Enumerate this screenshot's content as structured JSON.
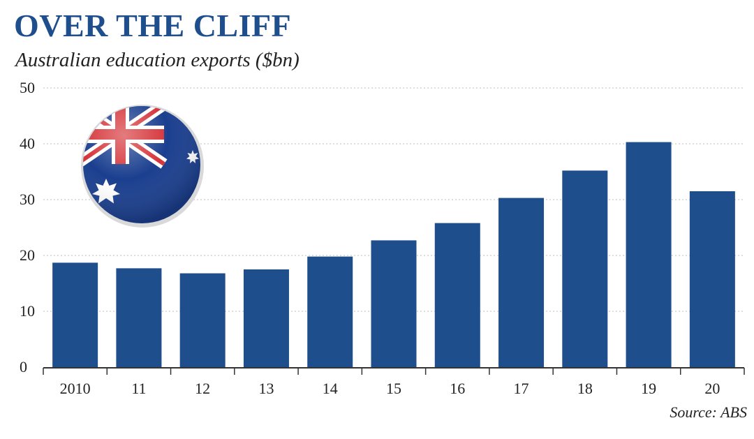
{
  "title": "OVER THE CLIFF",
  "subtitle": "Australian education exports ($bn)",
  "source": "Source: ABS",
  "colors": {
    "bar": "#1f4e8c",
    "title": "#1f4e8c",
    "grid": "#c9c9c9",
    "flag_blue": "#1b3f8f",
    "flag_red": "#d5353a"
  },
  "icons": {
    "flag": "australian-flag-badge-icon"
  },
  "chart_data": {
    "type": "bar",
    "categories": [
      "2010",
      "11",
      "12",
      "13",
      "14",
      "15",
      "16",
      "17",
      "18",
      "19",
      "20"
    ],
    "values": [
      18.7,
      17.7,
      16.8,
      17.5,
      19.8,
      22.7,
      25.8,
      30.3,
      35.2,
      40.3,
      31.5
    ],
    "y_ticks": [
      0,
      10,
      20,
      30,
      40,
      50
    ],
    "ylim": [
      0,
      50
    ],
    "grid": true,
    "title": "OVER THE CLIFF",
    "ylabel": "Australian education exports ($bn)",
    "xlabel": ""
  }
}
